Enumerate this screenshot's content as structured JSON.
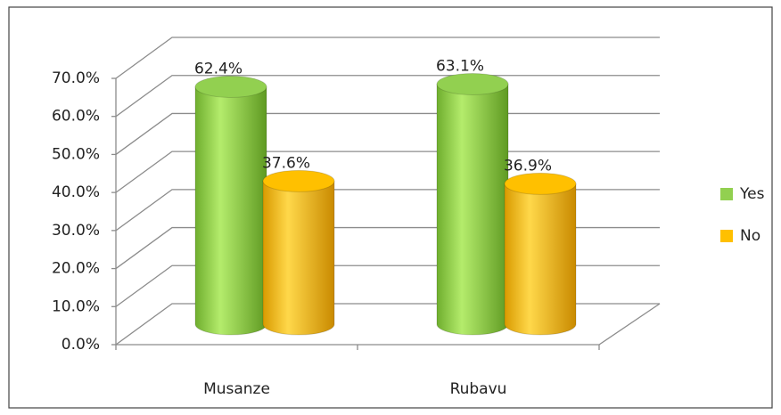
{
  "chart_data": {
    "type": "bar3d",
    "categories": [
      "Musanze",
      "Rubavu"
    ],
    "series": [
      {
        "name": "Yes",
        "color": "#92d050",
        "values": [
          62.4,
          63.1
        ],
        "value_labels": [
          "62.4%",
          "63.1%"
        ]
      },
      {
        "name": "No",
        "color": "#ffc000",
        "values": [
          37.6,
          36.9
        ],
        "value_labels": [
          "37.6%",
          "36.9%"
        ]
      }
    ],
    "ylim": [
      0,
      70
    ],
    "yticks": [
      {
        "value": 0,
        "label": "0.0%"
      },
      {
        "value": 10,
        "label": "10.0%"
      },
      {
        "value": 20,
        "label": "20.0%"
      },
      {
        "value": 30,
        "label": "30.0%"
      },
      {
        "value": 40,
        "label": "40.0%"
      },
      {
        "value": 50,
        "label": "50.0%"
      },
      {
        "value": 60,
        "label": "60.0%"
      },
      {
        "value": 70,
        "label": "70.0%"
      }
    ],
    "grid": true,
    "legend": "right"
  }
}
